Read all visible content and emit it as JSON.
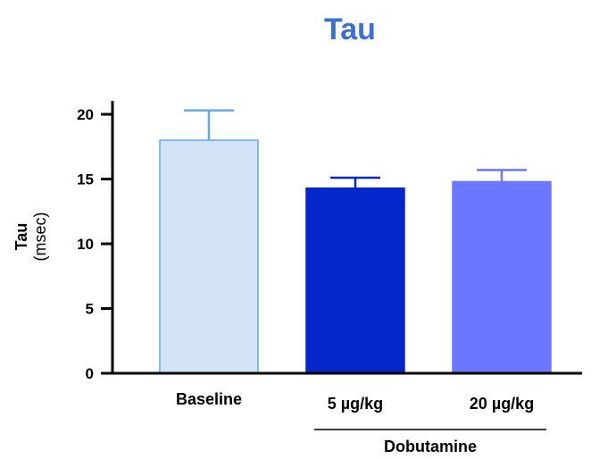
{
  "chart_data": {
    "type": "bar",
    "title": "Tau",
    "ylabel": "Tau",
    "ylabel_unit": "(msec)",
    "xlabel": "",
    "categories": [
      "Baseline",
      "5 µg/kg",
      "20 µg/kg"
    ],
    "values": [
      18.0,
      14.3,
      14.8
    ],
    "error_upper": [
      2.3,
      0.8,
      0.9
    ],
    "ylim": [
      0,
      20
    ],
    "yticks": [
      "0",
      "5",
      "10",
      "15",
      "20"
    ],
    "group_label": "Dobutamine",
    "grid": false,
    "bar_fills": [
      "#d3e3f8",
      "#0527c9",
      "#6c76ff"
    ],
    "bar_strokes": [
      "#62a9ec",
      "#0527c9",
      "#6c76ff"
    ],
    "error_colors": [
      "#62a9ec",
      "#0527c9",
      "#6c76ff"
    ]
  }
}
